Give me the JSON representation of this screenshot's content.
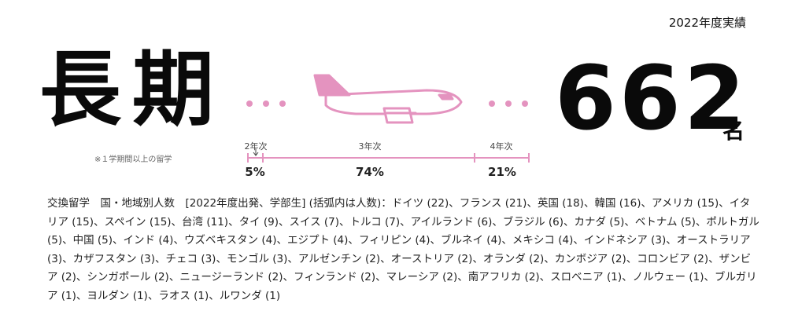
{
  "header": {
    "year_label": "2022年度実績"
  },
  "hero": {
    "title": "長期",
    "note": "※１学期間以上の留学",
    "count": "662",
    "count_unit": "名"
  },
  "colors": {
    "accent": "#e493bf",
    "text": "#111111"
  },
  "timeline": {
    "segments": [
      {
        "label": "2年次",
        "percent": "5%",
        "share": 5
      },
      {
        "label": "3年次",
        "percent": "74%",
        "share": 74
      },
      {
        "label": "4年次",
        "percent": "21%",
        "share": 21
      }
    ]
  },
  "breakdown": {
    "text": "交換留学　国・地域別人数　[2022年度出発、学部生] (括弧内は人数)：ドイツ (22)、フランス (21)、英国 (18)、韓国 (16)、アメリカ (15)、イタリア (15)、スペイン (15)、台湾 (11)、タイ (9)、スイス (7)、トルコ (7)、アイルランド (6)、ブラジル (6)、カナダ (5)、ベトナム (5)、ポルトガル (5)、中国 (5)、インド (4)、ウズベキスタン (4)、エジプト (4)、フィリピン (4)、ブルネイ (4)、メキシコ (4)、インドネシア (3)、オーストラリア (3)、カザフスタン (3)、チェコ (3)、モンゴル (3)、アルゼンチン (2)、オーストリア (2)、オランダ (2)、カンボジア (2)、コロンビア (2)、ザンビア (2)、シンガポール (2)、ニュージーランド (2)、フィンランド (2)、マレーシア (2)、南アフリカ (2)、スロベニア (1)、ノルウェー (1)、ブルガリア (1)、ヨルダン (1)、ラオス (1)、ルワンダ (1)"
  }
}
